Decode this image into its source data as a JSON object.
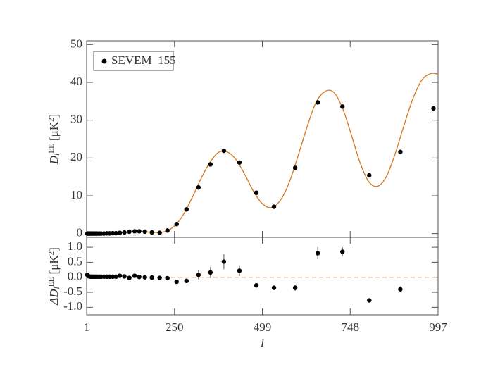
{
  "chart_data": [
    {
      "type": "scatter",
      "ylabel_parts": [
        "D",
        "l",
        "EE",
        " [μK",
        "2",
        "]"
      ],
      "xlim": [
        1,
        997
      ],
      "xticks": [
        1,
        250,
        499,
        748,
        997
      ],
      "xtick_labels": false,
      "ylim": [
        -1,
        51
      ],
      "yticks": [
        0,
        10,
        20,
        30,
        40,
        50
      ],
      "legend": "upper left",
      "series": [
        {
          "name": "SEVEM_155",
          "color": "#000000",
          "x": [
            3,
            6,
            9,
            12,
            16,
            20,
            25,
            30,
            36,
            42,
            50,
            58,
            66,
            75,
            84,
            95,
            108,
            122,
            137,
            150,
            166,
            186,
            208,
            230,
            256,
            284,
            318,
            352,
            390,
            434,
            482,
            532,
            592,
            656,
            726,
            802,
            890,
            984
          ],
          "values": [
            0,
            0,
            0,
            0,
            0,
            0,
            0,
            0,
            0,
            0,
            0,
            0.05,
            0.05,
            0.1,
            0.1,
            0.2,
            0.3,
            0.5,
            0.6,
            0.6,
            0.5,
            0.3,
            0.2,
            0.8,
            2.5,
            6.4,
            12.2,
            18.3,
            21.9,
            18.8,
            10.8,
            7.1,
            17.4,
            34.7,
            33.6,
            15.4,
            21.6,
            33.1
          ]
        }
      ],
      "curve": {
        "color": "#d2781e",
        "x": [
          1,
          50,
          100,
          150,
          200,
          225,
          250,
          275,
          300,
          325,
          350,
          375,
          400,
          425,
          450,
          475,
          500,
          525,
          550,
          575,
          600,
          625,
          650,
          675,
          700,
          725,
          750,
          775,
          800,
          825,
          850,
          875,
          900,
          925,
          950,
          975,
          997
        ],
        "values": [
          0,
          0.05,
          0.3,
          0.5,
          0.3,
          0.6,
          2.0,
          5.0,
          9.5,
          14.5,
          18.8,
          21.5,
          21.6,
          19.5,
          15.5,
          11.0,
          7.8,
          6.9,
          8.8,
          13.5,
          20.5,
          28.0,
          34.5,
          37.5,
          37.5,
          33.5,
          26.5,
          19.0,
          13.8,
          12.5,
          15.0,
          21.0,
          28.5,
          35.5,
          40.5,
          42.3,
          42.2
        ]
      }
    },
    {
      "type": "scatter",
      "ylabel_parts": [
        "ΔD",
        "l",
        "EE",
        " [μK",
        "2",
        "]"
      ],
      "xlabel": "l",
      "xlim": [
        1,
        997
      ],
      "xticks": [
        1,
        250,
        499,
        748,
        997
      ],
      "xtick_labels": true,
      "ylim": [
        -1.25,
        1.33
      ],
      "yticks": [
        {
          "value": -1,
          "label": "-1.0"
        },
        {
          "value": -0.5,
          "label": "-0.5"
        },
        {
          "value": 0,
          "label": "0.0"
        },
        0.5,
        {
          "value": 1,
          "label": "1.0"
        }
      ],
      "reference_line": 0,
      "reference_color": "#e8b89a",
      "series": [
        {
          "color": "#000000",
          "x": [
            3,
            6,
            9,
            12,
            16,
            20,
            25,
            30,
            36,
            42,
            50,
            58,
            66,
            75,
            84,
            95,
            108,
            122,
            137,
            150,
            166,
            186,
            208,
            230,
            256,
            284,
            318,
            352,
            390,
            434,
            482,
            532,
            592,
            656,
            726,
            802,
            890,
            984
          ],
          "values": [
            0.08,
            0.04,
            0.03,
            0.02,
            0.02,
            0.02,
            0.02,
            0.02,
            0.02,
            0.02,
            0.02,
            0.02,
            0.02,
            0.02,
            0.02,
            0.05,
            0.03,
            -0.02,
            0.05,
            0.01,
            0.0,
            -0.01,
            -0.02,
            -0.03,
            -0.15,
            -0.12,
            0.08,
            0.16,
            0.52,
            0.22,
            -0.27,
            -0.35,
            -0.35,
            0.8,
            0.85,
            -0.77,
            -0.4,
            null
          ],
          "errors": [
            0.03,
            0.03,
            0.03,
            0.03,
            0.03,
            0.03,
            0.03,
            0.03,
            0.03,
            0.03,
            0.03,
            0.03,
            0.03,
            0.03,
            0.03,
            0.03,
            0.03,
            0.03,
            0.03,
            0.03,
            0.03,
            0.03,
            0.03,
            0.03,
            0.05,
            0.05,
            0.15,
            0.18,
            0.25,
            0.18,
            0.05,
            0.05,
            0.1,
            0.2,
            0.15,
            0.05,
            0.1,
            null
          ]
        }
      ]
    }
  ]
}
